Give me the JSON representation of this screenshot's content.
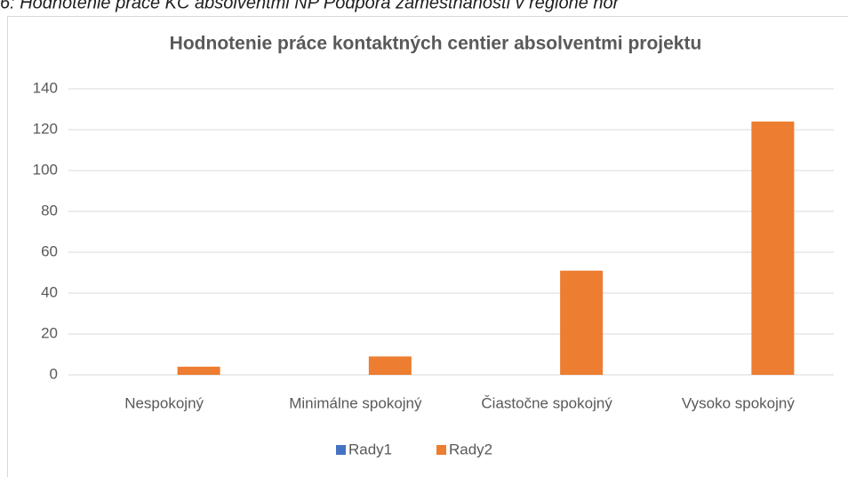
{
  "caption": "6: Hodnotenie práce KC absolventmi NP Podpora zamestnanosti v regióne hor",
  "chart_data": {
    "type": "bar",
    "title": "Hodnotenie práce kontaktných centier absolventmi projektu",
    "categories": [
      "Nespokojný",
      "Minimálne spokojný",
      "Čiastočne spokojný",
      "Vysoko spokojný"
    ],
    "series": [
      {
        "name": "Rady1",
        "color": "#4472c4",
        "values": [
          0,
          0,
          0,
          0
        ]
      },
      {
        "name": "Rady2",
        "color": "#ed7d31",
        "values": [
          4,
          9,
          51,
          124
        ]
      }
    ],
    "ylim": [
      0,
      140
    ],
    "yticks": [
      0,
      20,
      40,
      60,
      80,
      100,
      120,
      140
    ],
    "grid": true,
    "legend": "bottom"
  }
}
